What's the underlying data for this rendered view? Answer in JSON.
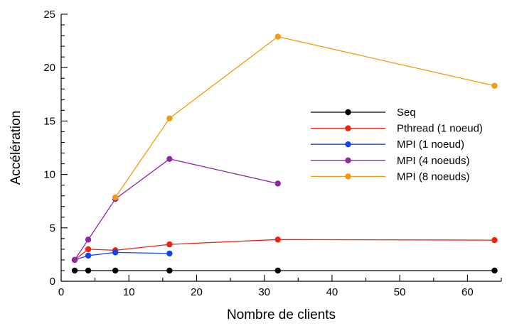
{
  "chart_data": {
    "type": "line",
    "title": "",
    "xlabel": "Nombre de clients",
    "ylabel": "Accélération",
    "xlim": [
      0,
      65
    ],
    "ylim": [
      0,
      25
    ],
    "xticks": [
      0,
      10,
      20,
      30,
      40,
      50,
      60
    ],
    "yticks": [
      0,
      5,
      10,
      15,
      20,
      25
    ],
    "grid": false,
    "legend_position": "right",
    "series": [
      {
        "name": "Seq",
        "color": "#000000",
        "x": [
          2,
          4,
          8,
          16,
          32,
          64
        ],
        "y": [
          1,
          1,
          1,
          1,
          1,
          1
        ]
      },
      {
        "name": "Pthread (1 noeud)",
        "color": "#ee2211",
        "x": [
          2,
          4,
          8,
          16,
          32,
          64
        ],
        "y": [
          2.0,
          3.0,
          2.9,
          3.45,
          3.9,
          3.85
        ]
      },
      {
        "name": "MPI (1 noeud)",
        "color": "#1144ee",
        "x": [
          2,
          4,
          8,
          16
        ],
        "y": [
          2.0,
          2.4,
          2.7,
          2.6
        ]
      },
      {
        "name": "MPI (4 noeuds)",
        "color": "#8e2aa0",
        "x": [
          2,
          4,
          8,
          16,
          32
        ],
        "y": [
          2.0,
          3.9,
          7.7,
          11.45,
          9.15
        ]
      },
      {
        "name": "MPI (8 noeuds)",
        "color": "#f49a12",
        "x": [
          8,
          16,
          32,
          64
        ],
        "y": [
          7.85,
          15.25,
          22.9,
          18.3
        ]
      }
    ]
  }
}
